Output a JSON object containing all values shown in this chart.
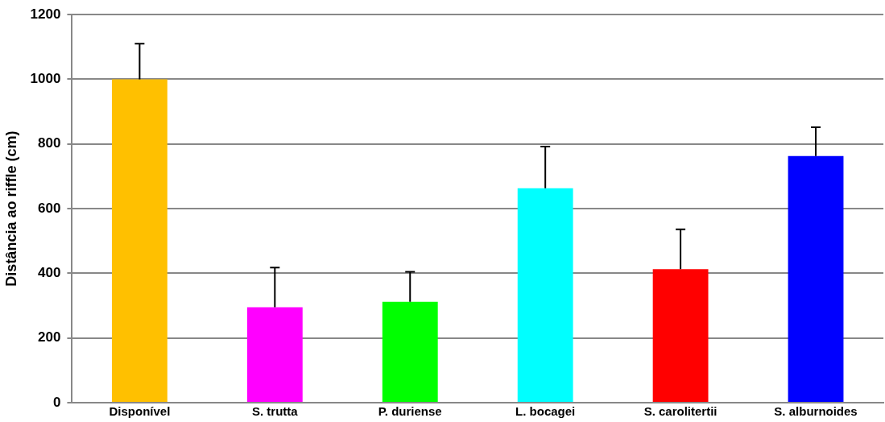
{
  "chart_data": {
    "type": "bar",
    "ylabel": "Distância ao riffle (cm)",
    "categories": [
      "Disponível",
      "S. trutta",
      "P. duriense",
      "L. bocagei",
      "S. carolitertii",
      "S. alburnoides"
    ],
    "values": [
      1000,
      295,
      312,
      663,
      413,
      763
    ],
    "errors": [
      110,
      123,
      93,
      129,
      123,
      89
    ],
    "colors": [
      "#ffc000",
      "#ff00ff",
      "#00ff00",
      "#00ffff",
      "#ff0000",
      "#0000ff"
    ],
    "ylim": [
      0,
      1200
    ],
    "yticks": [
      0,
      200,
      400,
      600,
      800,
      1000,
      1200
    ],
    "grid": "y",
    "legend": false
  }
}
